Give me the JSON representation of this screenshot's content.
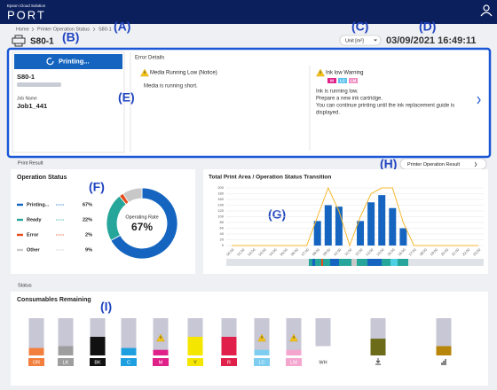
{
  "header": {
    "brand_small": "Epson Cloud Solution",
    "brand": "PORT"
  },
  "breadcrumb": [
    "Home",
    "Printer Operation Status",
    "S80-1"
  ],
  "annotations": {
    "A": "(A)",
    "B": "(B)",
    "C": "(C)",
    "D": "(D)",
    "E": "(E)",
    "F": "(F)",
    "G": "(G)",
    "H": "(H)",
    "I": "(I)"
  },
  "printer_name": "S80-1",
  "unit_select": "Unit [m²]",
  "datetime": "03/09/2021 16:49:11",
  "status_panel": {
    "state": "Printing...",
    "printer": "S80-1",
    "job_label": "Job Name",
    "job": "Job1_441"
  },
  "errors": {
    "title": "Error Details",
    "items": [
      {
        "title": "Media Running Low (Notice)",
        "badges": [],
        "lines": [
          "Media is running short."
        ]
      },
      {
        "title": "Ink low Warning",
        "badges": [
          {
            "label": "M",
            "color": "#e0218a"
          },
          {
            "label": "LC",
            "color": "#5cc2ee"
          },
          {
            "label": "LM",
            "color": "#f08cc0"
          }
        ],
        "lines": [
          "Ink is running low.",
          "Prepare a new ink cartridge.",
          "You can continue printing until the ink replacement guide is",
          "displayed."
        ]
      }
    ]
  },
  "sections": {
    "print_result": "Print Result",
    "status": "Status"
  },
  "result_button": "Printer Operation Result",
  "chart_data": [
    {
      "type": "pie",
      "title": "Operation Status",
      "categories": [
        "Printing...",
        "Ready",
        "Error",
        "Other"
      ],
      "values": [
        67,
        22,
        2,
        9
      ],
      "value_labels": [
        "67%",
        "22%",
        "2%",
        "9%"
      ],
      "colors": [
        "#1565c0",
        "#26a69a",
        "#e64a19",
        "#c8c8c8"
      ],
      "center_label": "Operating Rate",
      "center_text": "67%"
    },
    {
      "type": "bar",
      "title": "Total Print Area / Operation Status Transition",
      "categories": [
        "00:00",
        "01:00",
        "02:00",
        "03:00",
        "04:00",
        "05:00",
        "06:00",
        "07:00",
        "08:00",
        "09:00",
        "10:00",
        "11:00",
        "12:00",
        "13:00",
        "14:00",
        "15:00",
        "16:00",
        "17:00",
        "18:00",
        "19:00",
        "20:00",
        "21:00",
        "22:00",
        "23:00"
      ],
      "values": [
        0,
        0,
        0,
        0,
        0,
        0,
        0,
        0,
        85,
        140,
        135,
        0,
        85,
        150,
        175,
        130,
        60,
        0,
        0,
        0,
        0,
        0,
        0,
        0
      ],
      "line_values": [
        0,
        0,
        0,
        0,
        0,
        0,
        0,
        0,
        100,
        200,
        120,
        0,
        100,
        180,
        200,
        200,
        80,
        0,
        0,
        0,
        0,
        0,
        0,
        0
      ],
      "color": "#1565c0",
      "line_color": "#f5b82e",
      "ylim": [
        0,
        200
      ],
      "yticks": [
        0,
        20,
        40,
        60,
        80,
        100,
        120,
        140,
        160,
        180,
        200
      ],
      "grid": true
    }
  ],
  "consumables": {
    "title": "Consumables Remaining",
    "items": [
      {
        "label": "OR",
        "color": "#f27f3d",
        "text_color": "#ffffff",
        "level": 20,
        "warning": false
      },
      {
        "label": "LK",
        "color": "#9e9e9e",
        "text_color": "#ffffff",
        "level": 25,
        "warning": false
      },
      {
        "label": "BK",
        "color": "#111111",
        "text_color": "#ffffff",
        "level": 50,
        "warning": false
      },
      {
        "label": "C",
        "color": "#1ea0e0",
        "text_color": "#ffffff",
        "level": 20,
        "warning": false
      },
      {
        "label": "M",
        "color": "#e0218a",
        "text_color": "#ffffff",
        "level": 15,
        "warning": true
      },
      {
        "label": "Y",
        "color": "#f5e600",
        "text_color": "#333333",
        "level": 50,
        "warning": false
      },
      {
        "label": "R",
        "color": "#e0204a",
        "text_color": "#ffffff",
        "level": 50,
        "warning": false
      },
      {
        "label": "LC",
        "color": "#7ecdf0",
        "text_color": "#ffffff",
        "level": 15,
        "warning": true
      },
      {
        "label": "LM",
        "color": "#f4a6cf",
        "text_color": "#ffffff",
        "level": 15,
        "warning": true
      },
      {
        "label": "WH",
        "color": "#ffffff",
        "text_color": "#333333",
        "level": 25,
        "warning": false
      },
      {
        "icon": "maintenance",
        "color": "#6b6b1a",
        "level": 45,
        "warning": false
      },
      {
        "icon": "waste",
        "color": "#b8860b",
        "level": 25,
        "warning": false
      }
    ]
  }
}
